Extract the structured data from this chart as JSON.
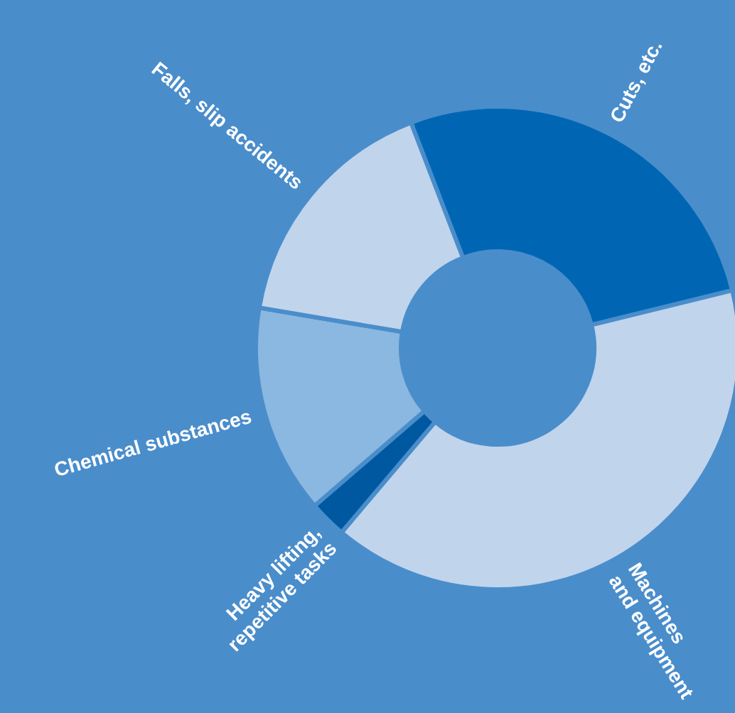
{
  "chart_data": {
    "type": "donut",
    "categories": [
      "Cuts, etc.",
      "Machines\nand equipment",
      "Heavy lifting,\nrepetitive tasks",
      "Chemical substances",
      "Falls, slip accidents"
    ],
    "values": [
      27,
      40,
      2.5,
      14,
      16.5
    ],
    "colors": [
      "#0066b3",
      "#c0d4ec",
      "#0058a0",
      "#8ab8e0",
      "#c0d4ec"
    ]
  }
}
